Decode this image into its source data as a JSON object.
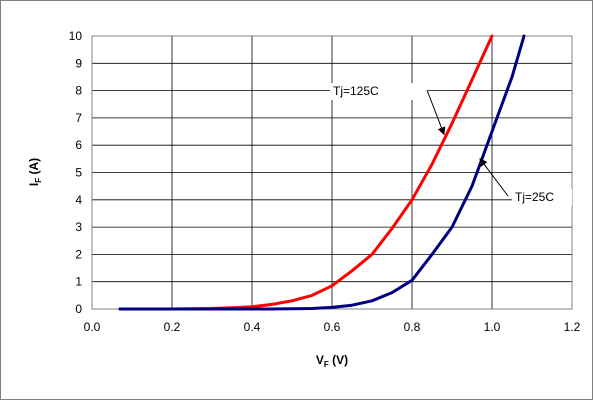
{
  "chart_data": {
    "type": "line",
    "title": "",
    "xlabel": {
      "main": "V",
      "sub": "F",
      "suffix": " (V)"
    },
    "ylabel": {
      "main": "I",
      "sub": "F",
      "suffix": " (A)"
    },
    "xlim": [
      0.0,
      1.2
    ],
    "ylim": [
      0,
      10
    ],
    "xticks": [
      "0.0",
      "0.2",
      "0.4",
      "0.6",
      "0.8",
      "1.0",
      "1.2"
    ],
    "yticks": [
      "0",
      "1",
      "2",
      "3",
      "4",
      "5",
      "6",
      "7",
      "8",
      "9",
      "10"
    ],
    "grid": true,
    "series": [
      {
        "name": "Tj=125C",
        "color": "#ff0000",
        "x": [
          0.07,
          0.2,
          0.3,
          0.36,
          0.4,
          0.45,
          0.5,
          0.55,
          0.6,
          0.65,
          0.7,
          0.75,
          0.8,
          0.85,
          0.9,
          0.95,
          1.0
        ],
        "y": [
          0.0,
          0.0,
          0.02,
          0.05,
          0.08,
          0.17,
          0.3,
          0.5,
          0.85,
          1.4,
          2.0,
          2.95,
          4.0,
          5.3,
          6.8,
          8.4,
          10.0
        ]
      },
      {
        "name": "Tj=25C",
        "color": "#000080",
        "x": [
          0.07,
          0.3,
          0.45,
          0.55,
          0.6,
          0.65,
          0.7,
          0.75,
          0.8,
          0.85,
          0.9,
          0.95,
          1.0,
          1.05,
          1.08
        ],
        "y": [
          0.0,
          0.0,
          0.0,
          0.02,
          0.06,
          0.14,
          0.3,
          0.6,
          1.05,
          2.0,
          3.0,
          4.5,
          6.5,
          8.5,
          10.0
        ]
      }
    ],
    "annotations": [
      {
        "text": "Tj=125C",
        "series": "Tj=125C",
        "x": 0.88,
        "y": 6.4
      },
      {
        "text": "Tj=25C",
        "series": "Tj=25C",
        "x": 0.97,
        "y": 5.5
      }
    ]
  }
}
